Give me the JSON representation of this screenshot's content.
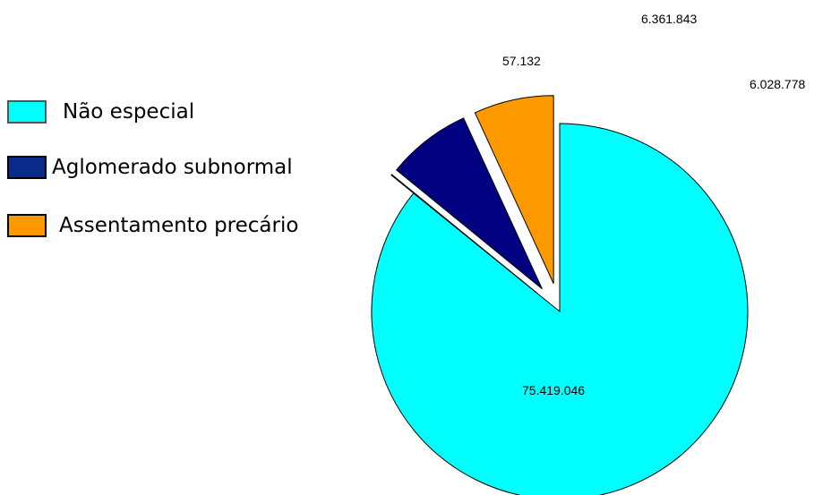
{
  "chart_data": {
    "type": "pie",
    "title": "",
    "slices": [
      {
        "name": "Não especial",
        "value": 75419046,
        "label": "75.419.046",
        "color": "#00FFFF"
      },
      {
        "name": "",
        "value": 57132,
        "label": "57.132",
        "color": "#FFFFFF"
      },
      {
        "name": "Aglomerado subnormal",
        "value": 6361843,
        "label": "6.361.843",
        "color": "#000080"
      },
      {
        "name": "Assentamento precário",
        "value": 6028778,
        "label": "6.028.778",
        "color": "#FF9900"
      }
    ],
    "legend": {
      "position": "left",
      "entries": [
        {
          "label": "Não especial",
          "color": "#00FFFF"
        },
        {
          "label": "Aglomerado subnormal",
          "color": "#0A2A8A"
        },
        {
          "label": "Assentamento precário",
          "color": "#FF9900"
        }
      ]
    }
  }
}
